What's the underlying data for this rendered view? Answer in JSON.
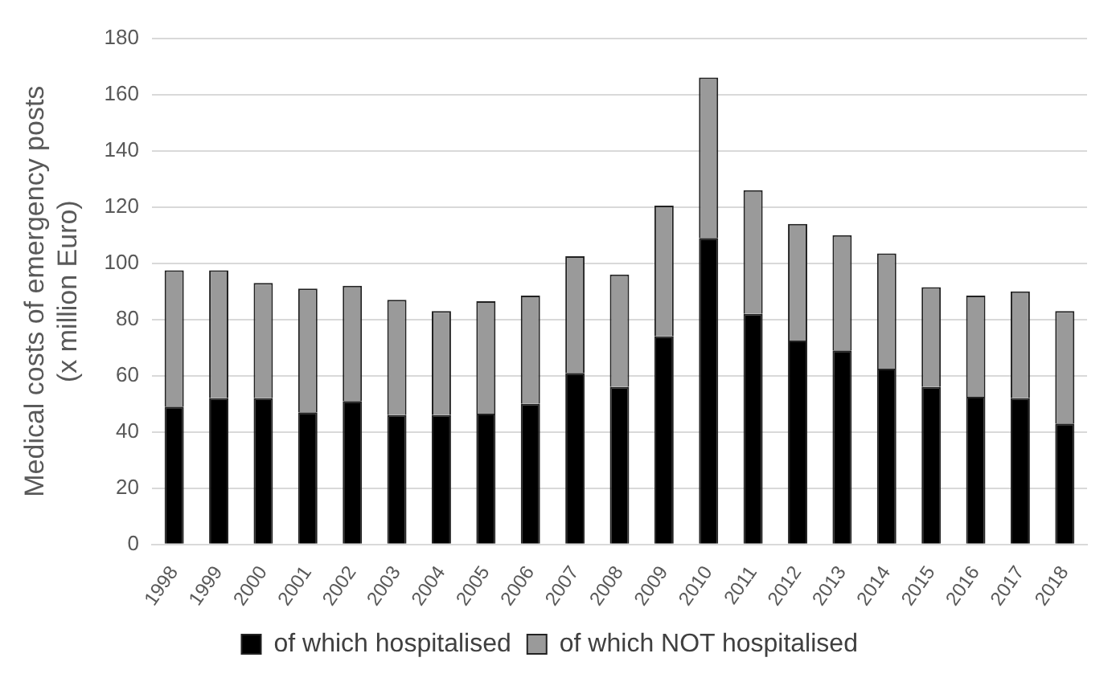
{
  "chart_data": {
    "type": "bar",
    "stacked": true,
    "ylabel": "Medical costs of emergency posts\n(x million Euro)",
    "categories": [
      "1998",
      "1999",
      "2000",
      "2001",
      "2002",
      "2003",
      "2004",
      "2005",
      "2006",
      "2007",
      "2008",
      "2009",
      "2010",
      "2011",
      "2012",
      "2013",
      "2014",
      "2015",
      "2016",
      "2017",
      "2018"
    ],
    "series": [
      {
        "name": "of which hospitalised",
        "color": "#000000",
        "values": [
          49,
          52,
          52,
          47,
          51,
          46,
          46,
          46.5,
          50,
          61,
          56,
          74,
          109,
          82,
          72.5,
          69,
          62.5,
          56,
          52.5,
          52,
          43
        ]
      },
      {
        "name": "of which NOT hospitalised",
        "color": "#9a9a9a",
        "values": [
          48.5,
          45.5,
          41,
          44,
          41,
          41,
          37,
          40,
          38.5,
          41.5,
          40,
          46.5,
          57,
          44,
          41.5,
          41,
          41,
          35.5,
          36,
          38,
          40
        ]
      }
    ],
    "ylim": [
      0,
      180
    ],
    "yticks": [
      0,
      20,
      40,
      60,
      80,
      100,
      120,
      140,
      160,
      180
    ],
    "grid": "y",
    "legend": "bottom"
  }
}
